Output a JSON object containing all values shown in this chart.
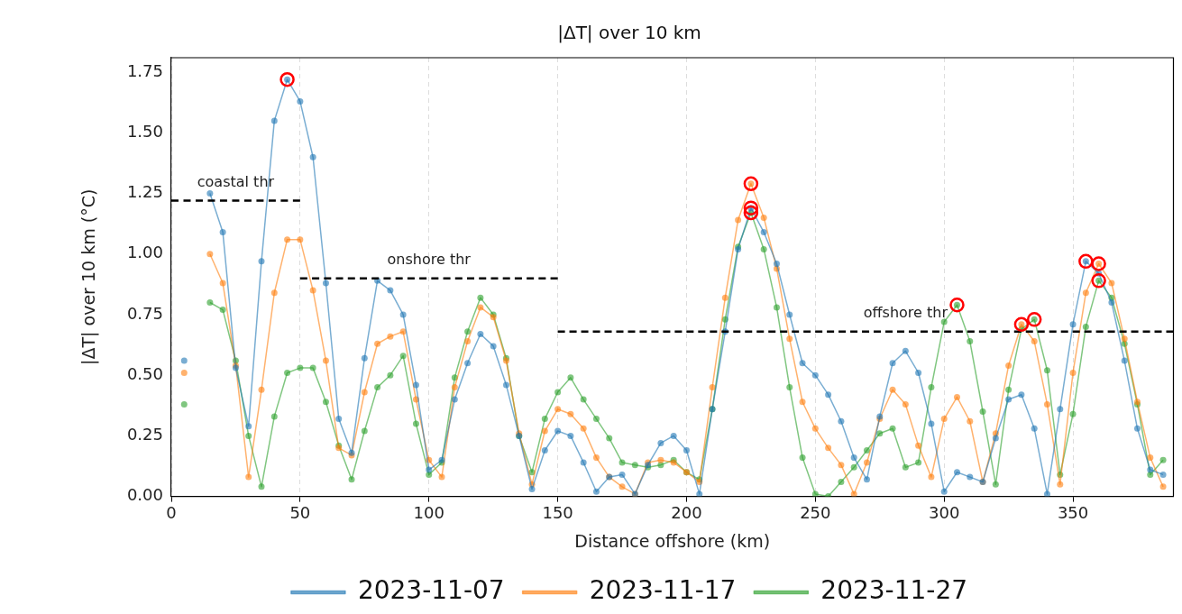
{
  "chart_data": {
    "type": "line",
    "title": "|ΔT| over 10 km",
    "xlabel": "Distance offshore (km)",
    "ylabel": "|ΔT| over 10 km (°C)",
    "x": [
      5,
      10,
      15,
      20,
      25,
      30,
      35,
      40,
      45,
      50,
      55,
      60,
      65,
      70,
      75,
      80,
      85,
      90,
      95,
      100,
      105,
      110,
      115,
      120,
      125,
      130,
      135,
      140,
      145,
      150,
      155,
      160,
      165,
      170,
      175,
      180,
      185,
      190,
      195,
      200,
      205,
      210,
      215,
      220,
      225,
      230,
      235,
      240,
      245,
      250,
      255,
      260,
      265,
      270,
      275,
      280,
      285,
      290,
      295,
      300,
      305,
      310,
      315,
      320,
      325,
      330,
      335,
      340,
      345,
      350,
      355,
      360,
      365,
      370,
      375,
      380,
      385
    ],
    "series": [
      {
        "name": "2023-11-07",
        "color": "#1f77b4",
        "values": [
          0.56,
          null,
          1.25,
          1.09,
          0.53,
          0.29,
          0.97,
          1.55,
          1.72,
          1.63,
          1.4,
          0.88,
          0.32,
          0.18,
          0.57,
          0.89,
          0.85,
          0.75,
          0.46,
          0.11,
          0.15,
          0.4,
          0.55,
          0.67,
          0.62,
          0.46,
          0.25,
          0.03,
          0.19,
          0.27,
          0.25,
          0.14,
          0.02,
          0.08,
          0.09,
          0.01,
          0.13,
          0.22,
          0.25,
          0.19,
          0.01,
          0.36,
          0.68,
          1.02,
          1.19,
          1.09,
          0.96,
          0.75,
          0.55,
          0.5,
          0.42,
          0.31,
          0.16,
          0.07,
          0.33,
          0.55,
          0.6,
          0.51,
          0.3,
          0.02,
          0.1,
          0.08,
          0.06,
          0.24,
          0.4,
          0.42,
          0.28,
          0.01,
          0.36,
          0.71,
          0.97,
          0.92,
          0.8,
          0.56,
          0.28,
          0.11,
          0.09
        ]
      },
      {
        "name": "2023-11-17",
        "color": "#ff7f0e",
        "values": [
          0.51,
          null,
          1.0,
          0.88,
          0.54,
          0.08,
          0.44,
          0.84,
          1.06,
          1.06,
          0.85,
          0.56,
          0.2,
          0.17,
          0.43,
          0.63,
          0.66,
          0.68,
          0.4,
          0.15,
          0.08,
          0.45,
          0.64,
          0.78,
          0.74,
          0.56,
          0.26,
          0.05,
          0.27,
          0.36,
          0.34,
          0.28,
          0.16,
          0.08,
          0.04,
          0.01,
          0.14,
          0.15,
          0.14,
          0.1,
          0.06,
          0.45,
          0.82,
          1.14,
          1.29,
          1.15,
          0.94,
          0.65,
          0.39,
          0.28,
          0.2,
          0.13,
          0.01,
          0.14,
          0.32,
          0.44,
          0.38,
          0.21,
          0.08,
          0.32,
          0.41,
          0.31,
          0.06,
          0.26,
          0.54,
          0.71,
          0.64,
          0.38,
          0.05,
          0.51,
          0.84,
          0.96,
          0.88,
          0.65,
          0.39,
          0.16,
          0.04
        ]
      },
      {
        "name": "2023-11-27",
        "color": "#2ca02c",
        "values": [
          0.38,
          null,
          0.8,
          0.77,
          0.56,
          0.25,
          0.04,
          0.33,
          0.51,
          0.53,
          0.53,
          0.39,
          0.21,
          0.07,
          0.27,
          0.45,
          0.5,
          0.58,
          0.3,
          0.09,
          0.14,
          0.49,
          0.68,
          0.82,
          0.75,
          0.57,
          0.25,
          0.1,
          0.32,
          0.43,
          0.49,
          0.4,
          0.32,
          0.24,
          0.14,
          0.13,
          0.12,
          0.13,
          0.15,
          0.1,
          0.07,
          0.36,
          0.73,
          1.03,
          1.17,
          1.02,
          0.78,
          0.45,
          0.16,
          0.01,
          0.0,
          0.06,
          0.12,
          0.19,
          0.26,
          0.28,
          0.12,
          0.14,
          0.45,
          0.72,
          0.79,
          0.64,
          0.35,
          0.05,
          0.44,
          0.69,
          0.73,
          0.52,
          0.09,
          0.34,
          0.7,
          0.89,
          0.82,
          0.63,
          0.38,
          0.09,
          0.15
        ]
      },
      {
        "type": "scatter",
        "color": "#ff0000",
        "x": [
          45,
          225,
          225,
          225,
          305,
          330,
          335,
          355,
          360,
          360
        ],
        "values": [
          1.72,
          1.29,
          1.19,
          1.17,
          0.79,
          0.71,
          0.73,
          0.97,
          0.96,
          0.89
        ]
      },
      {
        "type": "line",
        "color": "#000000",
        "line_style": "dashed",
        "marker": "none",
        "x": [
          0,
          50
        ],
        "values": [
          1.22,
          1.22
        ]
      },
      {
        "type": "line",
        "color": "#000000",
        "line_style": "dashed",
        "marker": "none",
        "x": [
          50,
          150
        ],
        "values": [
          0.9,
          0.9
        ]
      },
      {
        "type": "line",
        "color": "#000000",
        "line_style": "dashed",
        "marker": "none",
        "x": [
          150,
          389
        ],
        "values": [
          0.68,
          0.68
        ]
      }
    ],
    "annotations": [
      {
        "text": "coastal thr",
        "x": 25,
        "y": 1.22
      },
      {
        "text": "onshore thr",
        "x": 100,
        "y": 0.9
      },
      {
        "text": "offshore thr",
        "x": 285,
        "y": 0.68
      }
    ],
    "marker": "circle",
    "line_style": "solid",
    "xlim": [
      0,
      389
    ],
    "xticks": [
      0,
      50,
      100,
      150,
      200,
      250,
      300,
      350
    ],
    "ylim": [
      0,
      1.81
    ],
    "yticks": [
      {
        "value": 0,
        "label": "0.00"
      },
      {
        "value": 0.25,
        "label": "0.25"
      },
      {
        "value": 0.5,
        "label": "0.50"
      },
      {
        "value": 0.75,
        "label": "0.75"
      },
      {
        "value": 1,
        "label": "1.00"
      },
      {
        "value": 1.25,
        "label": "1.25"
      },
      {
        "value": 1.5,
        "label": "1.50"
      },
      {
        "value": 1.75,
        "label": "1.75"
      }
    ],
    "grid": "x",
    "legend": "bottom"
  }
}
